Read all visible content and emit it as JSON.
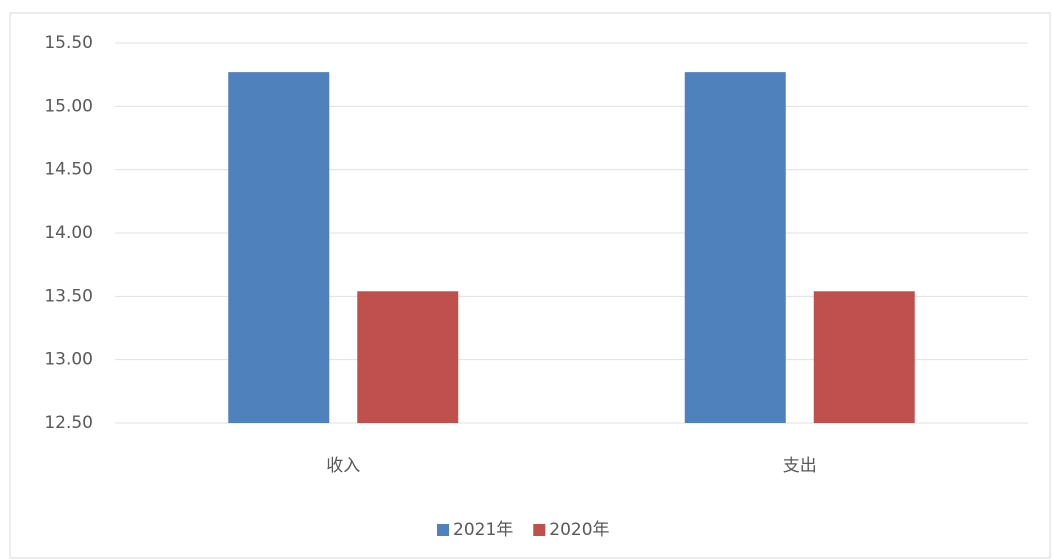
{
  "chart_data": {
    "type": "bar",
    "categories": [
      "收入",
      "支出"
    ],
    "series": [
      {
        "name": "2021年",
        "color": "#4f81bd",
        "values": [
          15.27,
          15.27
        ]
      },
      {
        "name": "2020年",
        "color": "#c0504d",
        "values": [
          13.54,
          13.54
        ]
      }
    ],
    "ylim": [
      12.5,
      15.5
    ],
    "yticks": [
      {
        "value": 12.5,
        "label": "12.50"
      },
      {
        "value": 13,
        "label": "13.00"
      },
      {
        "value": 13.5,
        "label": "13.50"
      },
      {
        "value": 14,
        "label": "14.00"
      },
      {
        "value": 14.5,
        "label": "14.50"
      },
      {
        "value": 15,
        "label": "15.00"
      },
      {
        "value": 15.5,
        "label": "15.50"
      }
    ],
    "grid": true,
    "legend": "bottom"
  }
}
